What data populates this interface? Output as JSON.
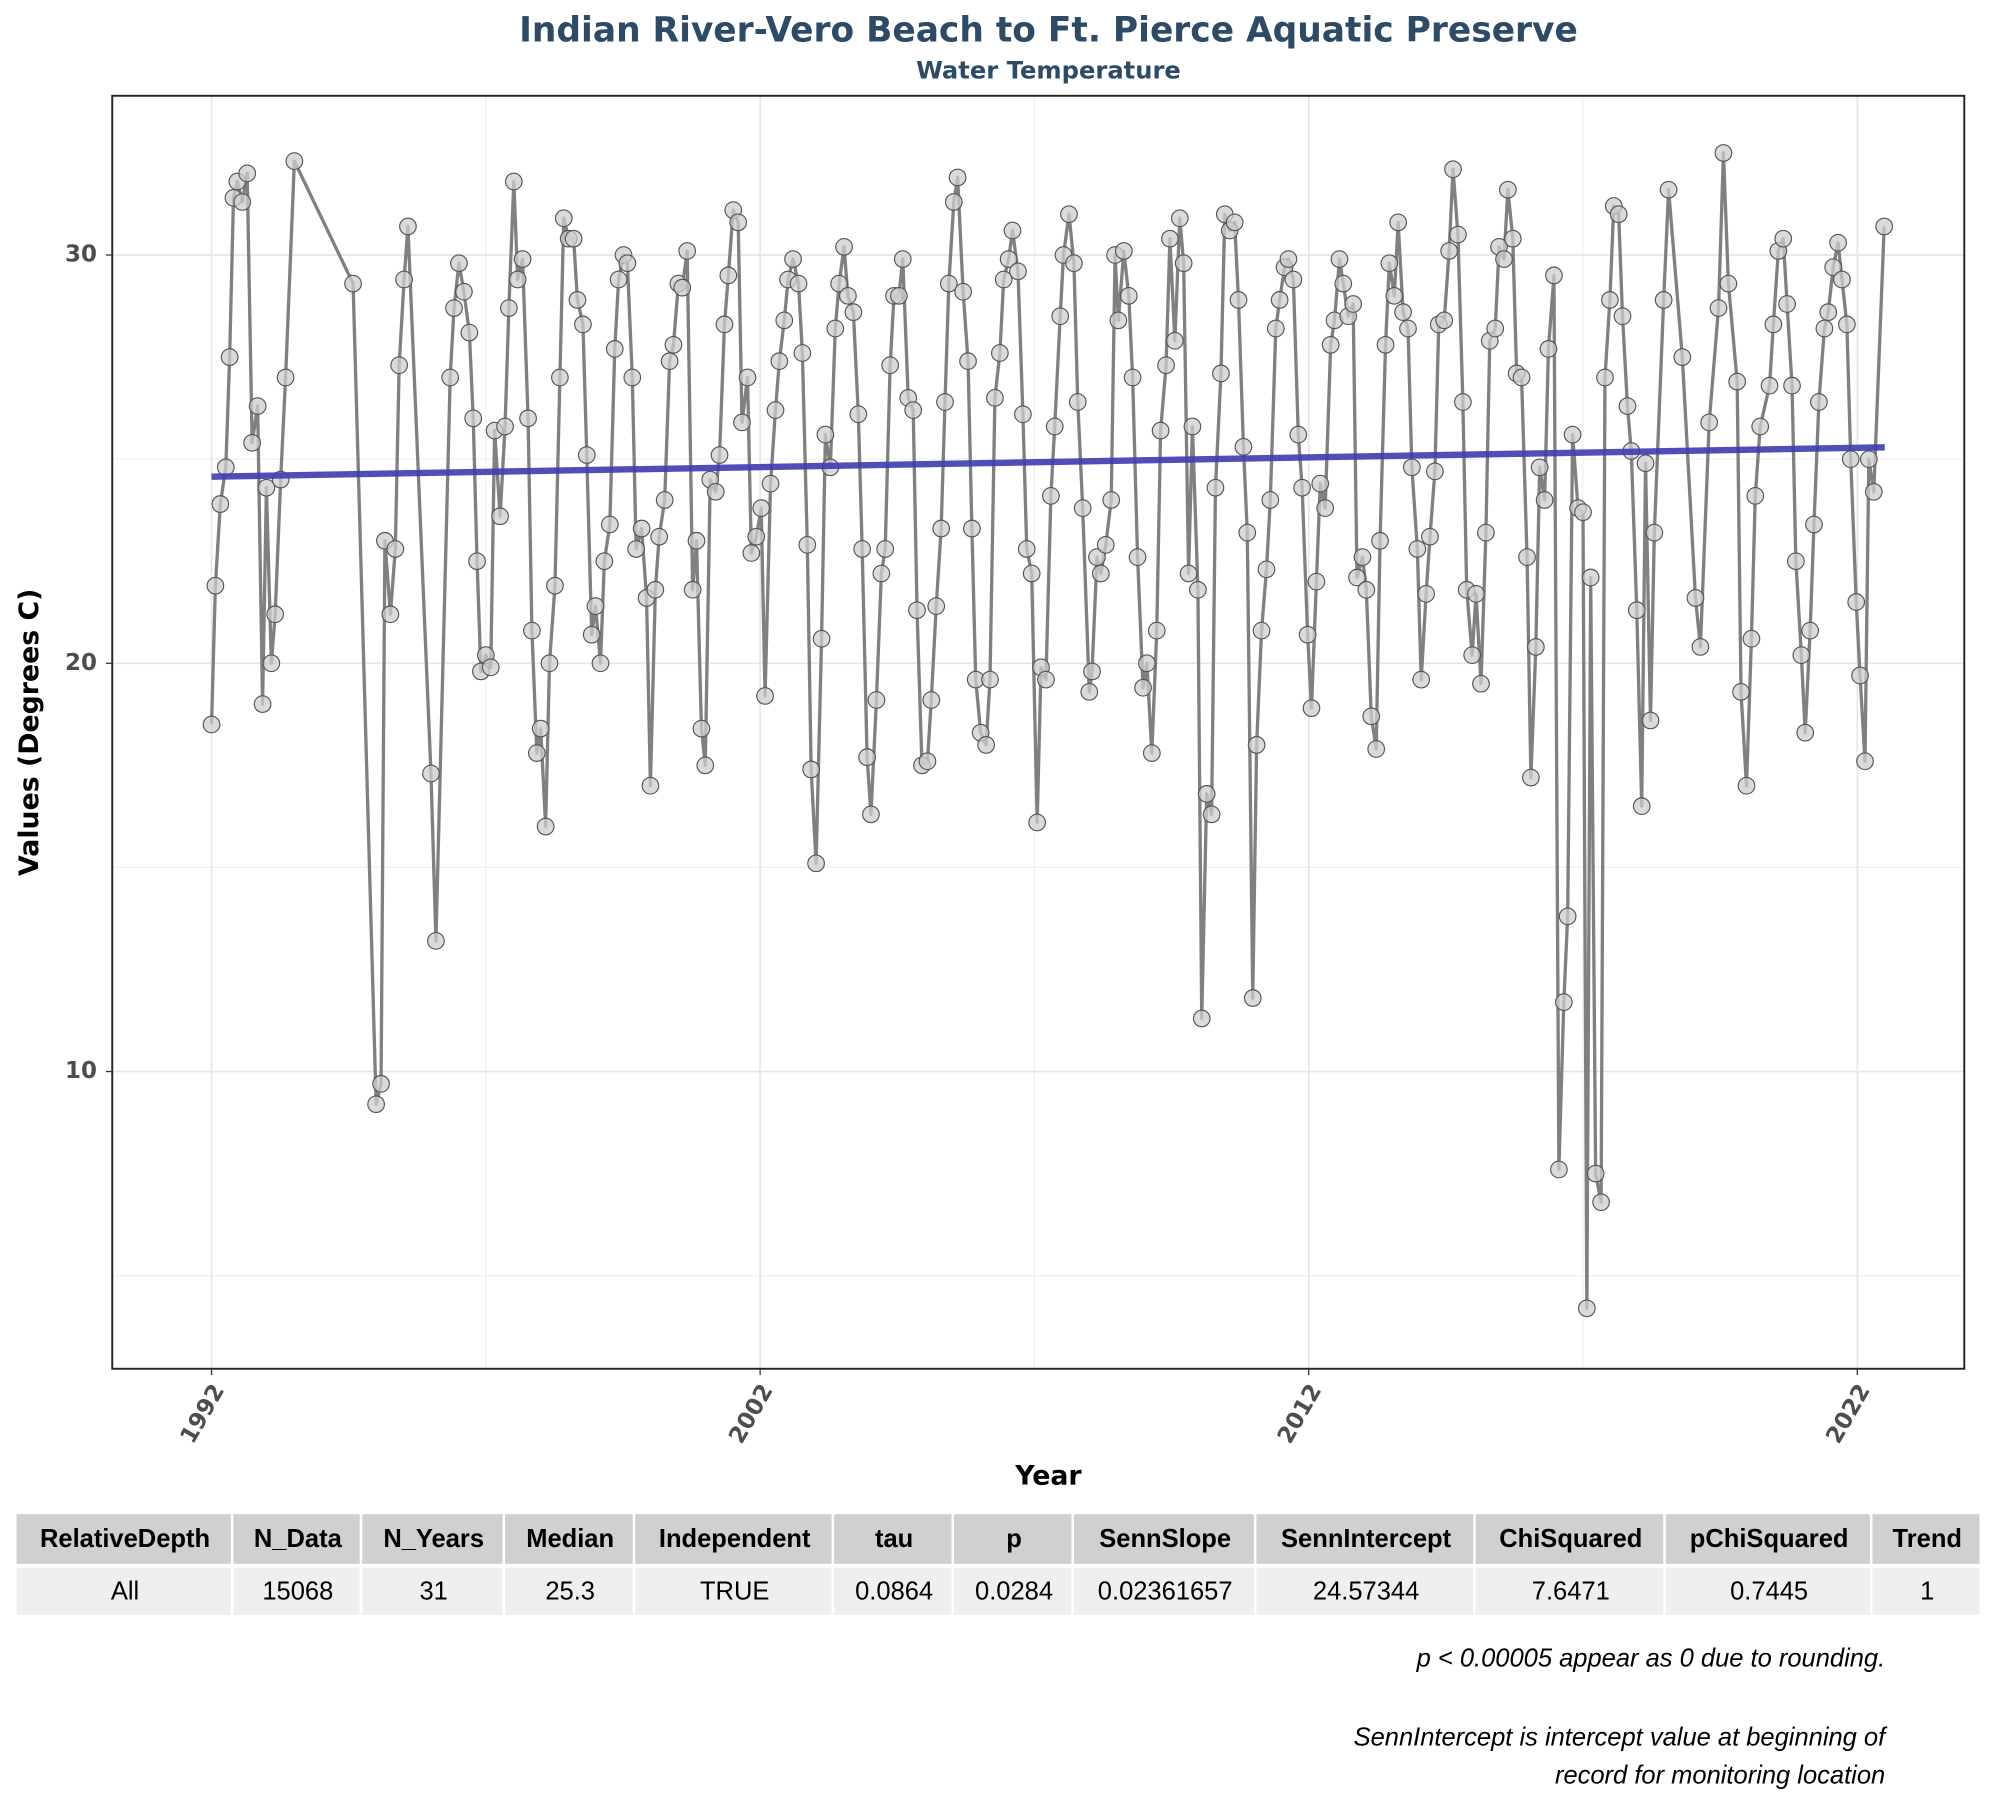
{
  "chart_data": {
    "type": "line",
    "title": "Indian River-Vero Beach to Ft. Pierce Aquatic Preserve",
    "subtitle": "Water Temperature",
    "x_label": "Year",
    "y_label": "Values (Degrees C)",
    "xlim": [
      1990.19,
      2023.95
    ],
    "ylim": [
      2.72,
      33.9
    ],
    "xticks": [
      1992,
      2002,
      2012,
      2022
    ],
    "yticks": [
      10,
      20,
      30
    ],
    "x_minor_grid": [
      1997,
      2007,
      2017
    ],
    "y_minor_grid": [
      5,
      15,
      25
    ],
    "grid": true,
    "color": "#808080",
    "x": [
      1992.0,
      1992.07,
      1992.16,
      1992.26,
      1992.33,
      1992.4,
      1992.47,
      1992.56,
      1992.65,
      1992.74,
      1992.84,
      1992.93,
      1993.0,
      1993.09,
      1993.16,
      1993.26,
      1993.35,
      1993.51,
      1994.58,
      1995.0,
      1995.09,
      1995.16,
      1995.26,
      1995.35,
      1995.42,
      1995.51,
      1995.58,
      1996.0,
      1996.09,
      1996.35,
      1996.42,
      1996.51,
      1996.6,
      1996.7,
      1996.77,
      1996.84,
      1996.91,
      1997.0,
      1997.09,
      1997.16,
      1997.26,
      1997.35,
      1997.42,
      1997.51,
      1997.58,
      1997.67,
      1997.77,
      1997.84,
      1997.93,
      1998.0,
      1998.09,
      1998.16,
      1998.26,
      1998.35,
      1998.42,
      1998.51,
      1998.6,
      1998.67,
      1998.77,
      1998.84,
      1998.93,
      1999.0,
      1999.09,
      1999.16,
      1999.26,
      1999.35,
      1999.42,
      1999.51,
      1999.58,
      1999.67,
      1999.74,
      1999.84,
      1999.93,
      2000.0,
      2000.09,
      2000.16,
      2000.26,
      2000.35,
      2000.42,
      2000.51,
      2000.58,
      2000.67,
      2000.77,
      2000.84,
      2000.93,
      2001.0,
      2001.09,
      2001.19,
      2001.26,
      2001.35,
      2001.42,
      2001.51,
      2001.6,
      2001.67,
      2001.77,
      2001.84,
      2001.93,
      2002.02,
      2002.09,
      2002.19,
      2002.28,
      2002.35,
      2002.44,
      2002.51,
      2002.6,
      2002.7,
      2002.77,
      2002.86,
      2002.93,
      2003.02,
      2003.12,
      2003.19,
      2003.28,
      2003.37,
      2003.44,
      2003.53,
      2003.6,
      2003.7,
      2003.79,
      2003.86,
      2003.95,
      2004.02,
      2004.12,
      2004.21,
      2004.28,
      2004.37,
      2004.44,
      2004.53,
      2004.6,
      2004.7,
      2004.79,
      2004.86,
      2004.95,
      2005.05,
      2005.12,
      2005.21,
      2005.3,
      2005.37,
      2005.44,
      2005.53,
      2005.6,
      2005.7,
      2005.79,
      2005.86,
      2005.93,
      2006.02,
      2006.12,
      2006.19,
      2006.28,
      2006.37,
      2006.44,
      2006.53,
      2006.6,
      2006.7,
      2006.79,
      2006.86,
      2006.95,
      2007.05,
      2007.12,
      2007.21,
      2007.3,
      2007.37,
      2007.47,
      2007.53,
      2007.63,
      2007.72,
      2007.79,
      2007.88,
      2008.0,
      2008.05,
      2008.14,
      2008.21,
      2008.3,
      2008.4,
      2008.47,
      2008.53,
      2008.63,
      2008.72,
      2008.79,
      2008.88,
      2008.98,
      2009.05,
      2009.14,
      2009.23,
      2009.3,
      2009.4,
      2009.47,
      2009.56,
      2009.65,
      2009.72,
      2009.81,
      2009.88,
      2009.98,
      2010.05,
      2010.14,
      2010.23,
      2010.3,
      2010.4,
      2010.47,
      2010.56,
      2010.65,
      2010.72,
      2010.81,
      2010.88,
      2010.98,
      2011.05,
      2011.14,
      2011.23,
      2011.3,
      2011.4,
      2011.47,
      2011.56,
      2011.63,
      2011.72,
      2011.81,
      2011.88,
      2011.98,
      2012.05,
      2012.14,
      2012.21,
      2012.3,
      2012.4,
      2012.47,
      2012.56,
      2012.63,
      2012.72,
      2012.81,
      2012.88,
      2012.98,
      2013.05,
      2013.14,
      2013.23,
      2013.3,
      2013.4,
      2013.47,
      2013.56,
      2013.63,
      2013.72,
      2013.81,
      2013.88,
      2013.98,
      2014.05,
      2014.14,
      2014.21,
      2014.3,
      2014.37,
      2014.47,
      2014.56,
      2014.63,
      2014.72,
      2014.81,
      2014.88,
      2014.98,
      2015.05,
      2015.14,
      2015.23,
      2015.3,
      2015.4,
      2015.47,
      2015.56,
      2015.63,
      2015.72,
      2015.79,
      2015.88,
      2015.98,
      2016.05,
      2016.14,
      2016.21,
      2016.3,
      2016.37,
      2016.47,
      2016.56,
      2016.65,
      2016.72,
      2016.81,
      2016.91,
      2017.0,
      2017.07,
      2017.14,
      2017.23,
      2017.33,
      2017.4,
      2017.49,
      2017.56,
      2017.65,
      2017.72,
      2017.81,
      2017.88,
      2017.98,
      2018.07,
      2018.14,
      2018.23,
      2018.3,
      2018.47,
      2018.56,
      2018.81,
      2019.05,
      2019.14,
      2019.3,
      2019.47,
      2019.56,
      2019.65,
      2019.81,
      2019.88,
      2019.98,
      2020.07,
      2020.14,
      2020.23,
      2020.4,
      2020.47,
      2020.56,
      2020.65,
      2020.72,
      2020.81,
      2020.88,
      2020.98,
      2021.05,
      2021.14,
      2021.21,
      2021.3,
      2021.4,
      2021.47,
      2021.56,
      2021.65,
      2021.72,
      2021.81,
      2021.88,
      2021.98,
      2022.05,
      2022.14,
      2022.21,
      2022.3,
      2022.49
    ],
    "values": [
      18.5,
      21.9,
      23.9,
      24.8,
      27.5,
      31.4,
      31.8,
      31.3,
      32.0,
      25.4,
      26.3,
      19.0,
      24.3,
      20.0,
      21.2,
      24.5,
      27.0,
      32.3,
      29.3,
      9.2,
      9.7,
      23.0,
      21.2,
      22.8,
      27.3,
      29.4,
      30.7,
      17.3,
      13.2,
      27.0,
      28.7,
      29.8,
      29.1,
      28.1,
      26.0,
      22.5,
      19.8,
      20.2,
      19.9,
      25.7,
      23.6,
      25.8,
      28.7,
      31.8,
      29.4,
      29.9,
      26.0,
      20.8,
      17.8,
      18.4,
      16.0,
      20.0,
      21.9,
      27.0,
      30.9,
      30.4,
      30.4,
      28.9,
      28.3,
      25.1,
      20.7,
      21.4,
      20.0,
      22.5,
      23.4,
      27.7,
      29.4,
      30.0,
      29.8,
      27.0,
      22.8,
      23.3,
      21.6,
      17.0,
      21.8,
      23.1,
      24.0,
      27.4,
      27.8,
      29.3,
      29.2,
      30.1,
      21.8,
      23.0,
      18.4,
      17.5,
      24.5,
      24.2,
      25.1,
      28.3,
      29.5,
      31.1,
      30.8,
      25.9,
      27.0,
      22.7,
      23.1,
      23.8,
      19.2,
      24.4,
      26.2,
      27.4,
      28.4,
      29.4,
      29.9,
      29.3,
      27.6,
      22.9,
      17.4,
      15.1,
      20.6,
      25.6,
      24.8,
      28.2,
      29.3,
      30.2,
      29.0,
      28.6,
      26.1,
      22.8,
      17.7,
      16.3,
      19.1,
      22.2,
      22.8,
      27.3,
      29.0,
      29.0,
      29.9,
      26.5,
      26.2,
      21.3,
      17.5,
      17.6,
      19.1,
      21.4,
      23.3,
      26.4,
      29.3,
      31.3,
      31.9,
      29.1,
      27.4,
      23.3,
      19.6,
      18.3,
      18.0,
      19.6,
      26.5,
      27.6,
      29.4,
      29.9,
      30.6,
      29.6,
      26.1,
      22.8,
      22.2,
      16.1,
      19.9,
      19.6,
      24.1,
      25.8,
      28.5,
      30.0,
      31.0,
      29.8,
      26.4,
      23.8,
      19.3,
      19.8,
      22.6,
      22.2,
      22.9,
      24.0,
      30.0,
      28.4,
      30.1,
      29.0,
      27.0,
      22.6,
      19.4,
      20.0,
      17.8,
      20.8,
      25.7,
      27.3,
      30.4,
      27.9,
      30.9,
      29.8,
      22.2,
      25.8,
      21.8,
      11.3,
      16.8,
      16.3,
      24.3,
      27.1,
      31.0,
      30.6,
      30.8,
      28.9,
      25.3,
      23.2,
      11.8,
      18.0,
      20.8,
      22.3,
      24.0,
      28.2,
      28.9,
      29.7,
      29.9,
      29.4,
      25.6,
      24.3,
      20.7,
      18.9,
      22.0,
      24.4,
      23.8,
      27.8,
      28.4,
      29.9,
      29.3,
      28.5,
      28.8,
      22.1,
      22.6,
      21.8,
      18.7,
      17.9,
      23.0,
      27.8,
      29.8,
      29.0,
      30.8,
      28.6,
      28.2,
      24.8,
      22.8,
      19.6,
      21.7,
      23.1,
      24.7,
      28.3,
      28.4,
      30.1,
      32.1,
      30.5,
      26.4,
      21.8,
      20.2,
      21.7,
      19.5,
      23.2,
      27.9,
      28.2,
      30.2,
      29.9,
      31.6,
      30.4,
      27.1,
      27.0,
      22.6,
      17.2,
      20.4,
      24.8,
      24.0,
      27.7,
      29.5,
      7.6,
      11.7,
      13.8,
      25.6,
      23.8,
      23.7,
      4.2,
      22.1,
      7.5,
      6.8,
      27.0,
      28.9,
      31.2,
      31.0,
      28.5,
      26.3,
      25.2,
      21.3,
      16.5,
      24.9,
      18.6,
      23.2,
      28.9,
      31.6,
      27.5,
      21.6,
      20.4,
      25.9,
      28.7,
      32.5,
      29.3,
      26.9,
      19.3,
      17.0,
      20.6,
      24.1,
      25.8,
      26.8,
      28.3,
      30.1,
      30.4,
      28.8,
      26.8,
      22.5,
      20.2,
      18.3,
      20.8,
      23.4,
      26.4,
      28.2,
      28.6,
      29.7,
      30.3,
      29.4,
      28.3,
      25.0,
      21.5,
      19.7,
      17.6,
      25.0,
      24.2,
      30.7
    ],
    "trend": {
      "x": [
        1992,
        2022.5
      ],
      "values": [
        24.57,
        25.29
      ],
      "color": "#3c3caf"
    }
  },
  "table": {
    "header": [
      "RelativeDepth",
      "N_Data",
      "N_Years",
      "Median",
      "Independent",
      "tau",
      "p",
      "SennSlope",
      "SennIntercept",
      "ChiSquared",
      "pChiSquared",
      "Trend"
    ],
    "rows": [
      [
        "All",
        "15068",
        "31",
        "25.3",
        "TRUE",
        "0.0864",
        "0.0284",
        "0.02361657",
        "24.57344",
        "7.6471",
        "0.7445",
        "1"
      ]
    ]
  },
  "notes": [
    "p < 0.00005 appear as 0 due to rounding.",
    "SennIntercept is intercept value at beginning of",
    "record for monitoring location"
  ]
}
